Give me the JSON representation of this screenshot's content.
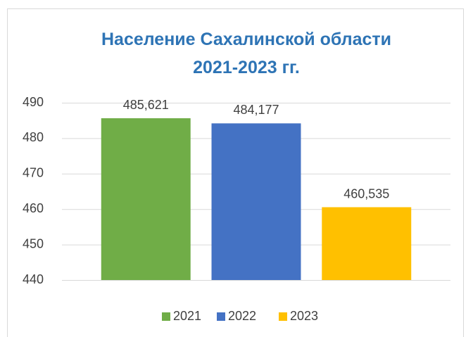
{
  "chart_data": {
    "type": "bar",
    "title": "Население Сахалинской области 2021-2023 гг.",
    "categories": [
      null
    ],
    "series": [
      {
        "name": "2021",
        "color": "#70ad47",
        "values": [
          485.621
        ],
        "value_labels": [
          "485,621"
        ]
      },
      {
        "name": "2022",
        "color": "#4472c4",
        "values": [
          484.177
        ],
        "value_labels": [
          "484,177"
        ]
      },
      {
        "name": "2023",
        "color": "#ffc000",
        "values": [
          460.535
        ],
        "value_labels": [
          "460,535"
        ]
      }
    ],
    "ylim": [
      440,
      490
    ],
    "yticks": [
      440,
      450,
      460,
      470,
      480,
      490
    ],
    "grid": true,
    "legend": "bottom"
  }
}
